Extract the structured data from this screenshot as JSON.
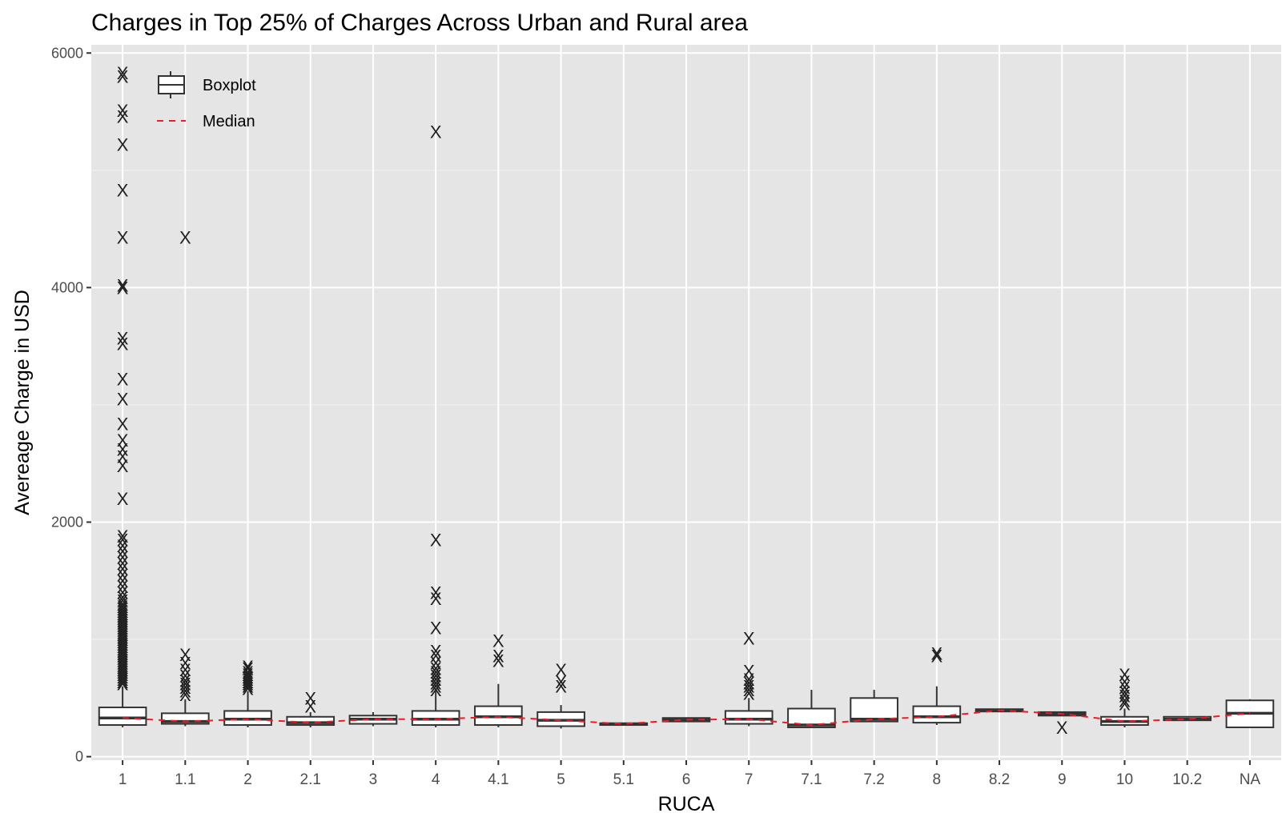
{
  "chart_data": {
    "type": "box",
    "title": "Charges in Top 25% of Charges Across Urban and Rural area",
    "xlabel": "RUCA",
    "ylabel": "Avereage Charge in USD",
    "ylim": [
      -30,
      6070
    ],
    "yticks": [
      0,
      2000,
      4000,
      6000
    ],
    "grid": true,
    "legend_position": "top-left",
    "legend": [
      {
        "key": "boxplot",
        "label": "Boxplot"
      },
      {
        "key": "median",
        "label": "Median"
      }
    ],
    "median_line_color": "#ee1c24",
    "outlier_marker": "X",
    "categories": [
      "1",
      "1.1",
      "2",
      "2.1",
      "3",
      "4",
      "4.1",
      "5",
      "5.1",
      "6",
      "7",
      "7.1",
      "7.2",
      "8",
      "8.2",
      "9",
      "10",
      "10.2",
      "NA"
    ],
    "boxes": [
      {
        "q1": 270,
        "median": 330,
        "q3": 420,
        "whisker_low": 250,
        "whisker_high": 600,
        "outliers": [
          620,
          640,
          660,
          680,
          700,
          720,
          740,
          760,
          780,
          800,
          820,
          840,
          860,
          880,
          900,
          920,
          940,
          960,
          980,
          1000,
          1020,
          1040,
          1060,
          1080,
          1100,
          1120,
          1140,
          1160,
          1180,
          1200,
          1220,
          1240,
          1260,
          1280,
          1300,
          1330,
          1360,
          1400,
          1450,
          1500,
          1550,
          1600,
          1650,
          1700,
          1750,
          1800,
          1850,
          1880,
          2200,
          2480,
          2560,
          2620,
          2700,
          2840,
          3050,
          3220,
          3520,
          3570,
          4000,
          4020,
          4430,
          4830,
          5220,
          5460,
          5510,
          5800,
          5830
        ]
      },
      {
        "q1": 280,
        "median": 300,
        "q3": 370,
        "whisker_low": 260,
        "whisker_high": 490,
        "outliers": [
          530,
          560,
          590,
          620,
          650,
          690,
          740,
          800,
          870,
          4430
        ]
      },
      {
        "q1": 270,
        "median": 320,
        "q3": 390,
        "whisker_low": 250,
        "whisker_high": 560,
        "outliers": [
          580,
          600,
          620,
          640,
          660,
          680,
          700,
          720,
          750,
          770
        ]
      },
      {
        "q1": 270,
        "median": 290,
        "q3": 340,
        "whisker_low": 250,
        "whisker_high": 380,
        "outliers": [
          430,
          500
        ]
      },
      {
        "q1": 280,
        "median": 320,
        "q3": 350,
        "whisker_low": 260,
        "whisker_high": 380,
        "outliers": []
      },
      {
        "q1": 270,
        "median": 320,
        "q3": 390,
        "whisker_low": 250,
        "whisker_high": 560,
        "outliers": [
          570,
          600,
          630,
          660,
          690,
          720,
          750,
          800,
          860,
          900,
          1100,
          1350,
          1400,
          1850,
          5330
        ]
      },
      {
        "q1": 270,
        "median": 340,
        "q3": 430,
        "whisker_low": 250,
        "whisker_high": 620,
        "outliers": [
          820,
          860,
          990
        ]
      },
      {
        "q1": 260,
        "median": 310,
        "q3": 380,
        "whisker_low": 240,
        "whisker_high": 440,
        "outliers": [
          600,
          640,
          740
        ]
      },
      {
        "q1": 270,
        "median": 280,
        "q3": 285,
        "whisker_low": 270,
        "whisker_high": 285,
        "outliers": []
      },
      {
        "q1": 300,
        "median": 315,
        "q3": 330,
        "whisker_low": 300,
        "whisker_high": 330,
        "outliers": []
      },
      {
        "q1": 280,
        "median": 320,
        "q3": 390,
        "whisker_low": 260,
        "whisker_high": 500,
        "outliers": [
          540,
          570,
          600,
          630,
          660,
          730,
          1010
        ]
      },
      {
        "q1": 250,
        "median": 270,
        "q3": 410,
        "whisker_low": 250,
        "whisker_high": 570,
        "outliers": []
      },
      {
        "q1": 300,
        "median": 320,
        "q3": 500,
        "whisker_low": 300,
        "whisker_high": 570,
        "outliers": []
      },
      {
        "q1": 290,
        "median": 340,
        "q3": 430,
        "whisker_low": 270,
        "whisker_high": 600,
        "outliers": [
          860,
          880
        ]
      },
      {
        "q1": 385,
        "median": 395,
        "q3": 405,
        "whisker_low": 385,
        "whisker_high": 405,
        "outliers": []
      },
      {
        "q1": 350,
        "median": 365,
        "q3": 380,
        "whisker_low": 350,
        "whisker_high": 380,
        "outliers": [
          250
        ]
      },
      {
        "q1": 270,
        "median": 300,
        "q3": 340,
        "whisker_low": 250,
        "whisker_high": 410,
        "outliers": [
          450,
          480,
          520,
          550,
          590,
          640,
          700
        ]
      },
      {
        "q1": 310,
        "median": 320,
        "q3": 340,
        "whisker_low": 310,
        "whisker_high": 340,
        "outliers": []
      },
      {
        "q1": 250,
        "median": 370,
        "q3": 480,
        "whisker_low": 250,
        "whisker_high": 490,
        "outliers": []
      }
    ]
  }
}
